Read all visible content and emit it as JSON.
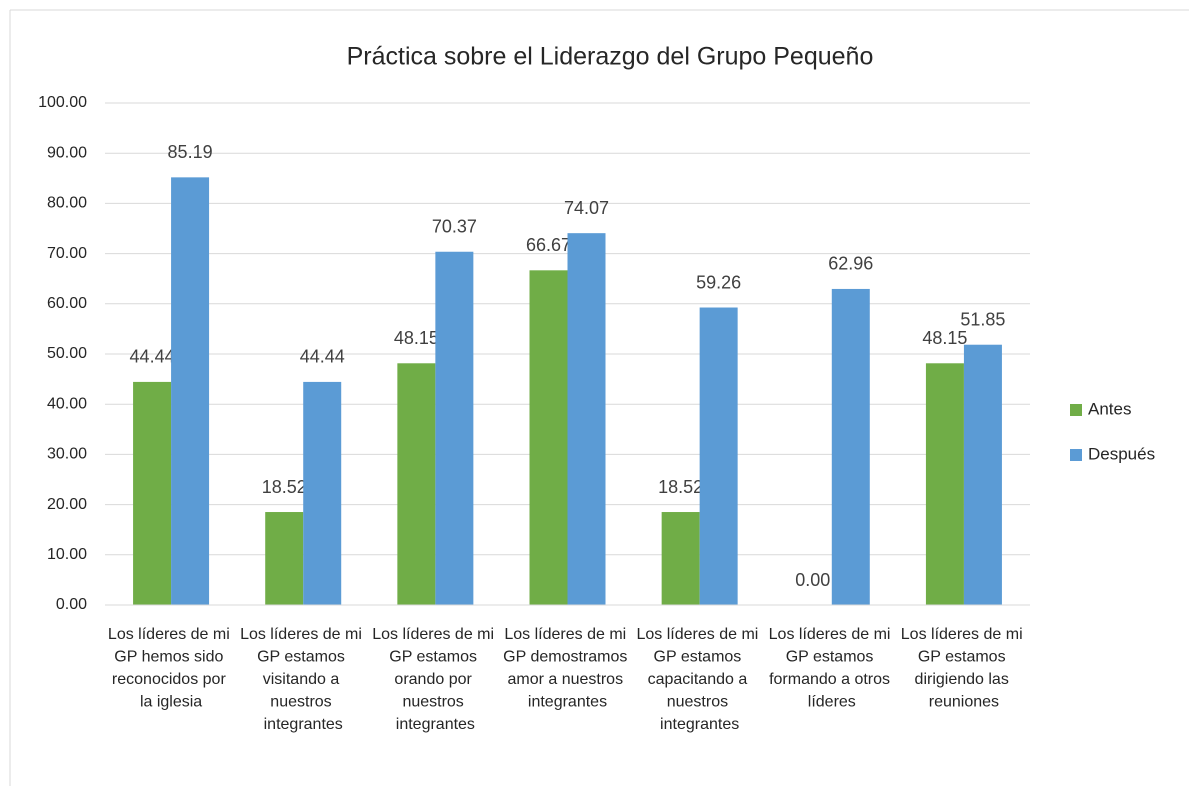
{
  "chart_data": {
    "type": "bar",
    "title": "Práctica sobre el Liderazgo del Grupo Pequeño",
    "categories": [
      "Los líderes de mi GP hemos sido reconocidos por la iglesia",
      "Los líderes de mi GP estamos visitando a nuestros integrantes",
      "Los líderes de mi GP estamos orando por nuestros integrantes",
      "Los líderes de mi GP demostramos amor a nuestros integrantes",
      "Los líderes de mi GP estamos capacitando a nuestros integrantes",
      "Los líderes de mi GP estamos formando a otros líderes",
      "Los líderes de mi GP estamos dirigiendo las reuniones"
    ],
    "series": [
      {
        "name": "Antes",
        "color": "#70ad47",
        "values": [
          44.44,
          18.52,
          48.15,
          66.67,
          18.52,
          0,
          48.15
        ],
        "value_labels": [
          "44.44",
          "18.52",
          "48.15",
          "66.67",
          "18.52",
          "0.00",
          "48.15"
        ]
      },
      {
        "name": "Después",
        "color": "#5b9bd5",
        "values": [
          85.19,
          44.44,
          70.37,
          74.07,
          59.26,
          62.96,
          51.85
        ]
      }
    ],
    "ylim": [
      0,
      100
    ],
    "yticks": [
      {
        "value": 0,
        "label": "0.00"
      },
      {
        "value": 10,
        "label": "10.00"
      },
      {
        "value": 20,
        "label": "20.00"
      },
      {
        "value": 30,
        "label": "30.00"
      },
      {
        "value": 40,
        "label": "40.00"
      },
      {
        "value": 50,
        "label": "50.00"
      },
      {
        "value": 60,
        "label": "60.00"
      },
      {
        "value": 70,
        "label": "70.00"
      },
      {
        "value": 80,
        "label": "80.00"
      },
      {
        "value": 90,
        "label": "90.00"
      },
      {
        "value": 100,
        "label": "100.00"
      }
    ],
    "grid": true,
    "legend": "right"
  }
}
